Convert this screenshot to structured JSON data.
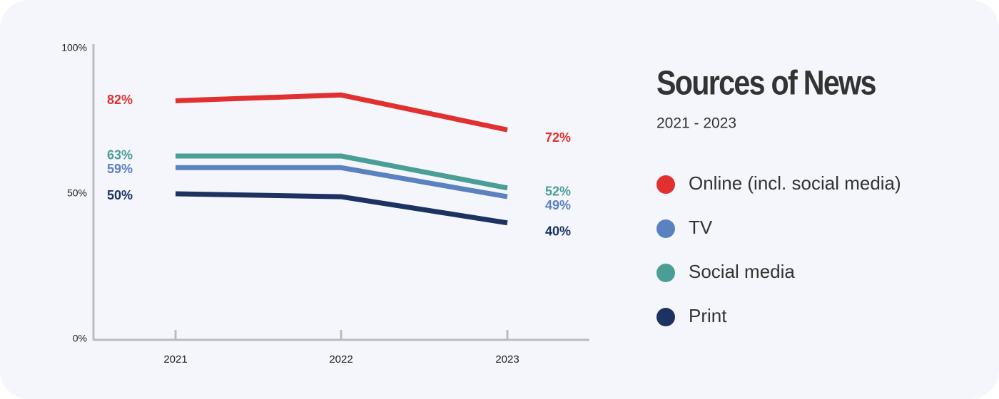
{
  "chart_data": {
    "type": "line",
    "title": "Sources of News",
    "subtitle": "2021 - 2023",
    "categories": [
      "2021",
      "2022",
      "2023"
    ],
    "series": [
      {
        "name": "Online (incl. social media)",
        "color": "#e0302f",
        "values": [
          82,
          84,
          72
        ],
        "value_labels": [
          "82%",
          null,
          "72%"
        ]
      },
      {
        "name": "TV",
        "color": "#5b82c0",
        "values": [
          59,
          59,
          49
        ],
        "value_labels": [
          "59%",
          null,
          "49%"
        ]
      },
      {
        "name": "Social media",
        "color": "#4a9e96",
        "values": [
          63,
          63,
          52
        ],
        "value_labels": [
          "63%",
          null,
          "52%"
        ]
      },
      {
        "name": "Print",
        "color": "#1c3261",
        "values": [
          50,
          49,
          40
        ],
        "value_labels": [
          "50%",
          null,
          "40%"
        ]
      }
    ],
    "ylim": [
      0,
      100
    ],
    "yticks": [
      {
        "value": 0,
        "label": "0%"
      },
      {
        "value": 50,
        "label": "50%"
      },
      {
        "value": 100,
        "label": "100%"
      }
    ],
    "grid": false
  }
}
